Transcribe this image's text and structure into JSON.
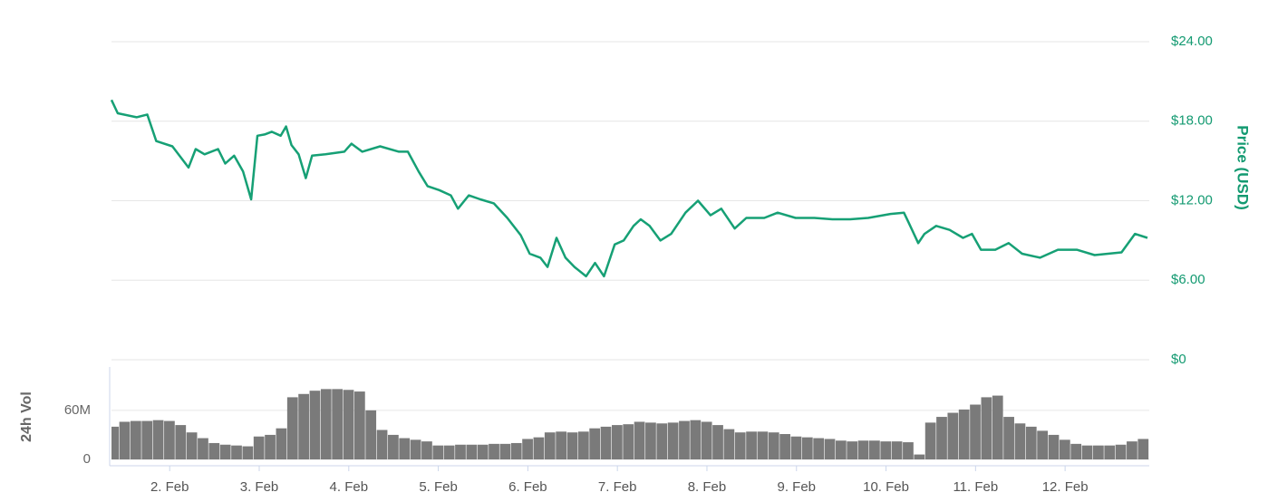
{
  "chart_data": [
    {
      "type": "line",
      "y_label": "Price (USD)",
      "color": "#16a075",
      "grid": true,
      "xlim": [
        1.35,
        12.94
      ],
      "ylim": [
        0,
        24
      ],
      "yticks": [
        {
          "value": 0,
          "label": "$0"
        },
        {
          "value": 6,
          "label": "$6.00"
        },
        {
          "value": 12,
          "label": "$12.00"
        },
        {
          "value": 18,
          "label": "$18.00"
        },
        {
          "value": 24,
          "label": "$24.00"
        }
      ],
      "x": [
        1.35,
        1.42,
        1.63,
        1.75,
        1.85,
        2.03,
        2.21,
        2.29,
        2.39,
        2.54,
        2.62,
        2.72,
        2.82,
        2.91,
        2.98,
        3.06,
        3.14,
        3.24,
        3.3,
        3.36,
        3.44,
        3.52,
        3.59,
        3.74,
        3.95,
        4.03,
        4.15,
        4.35,
        4.56,
        4.66,
        4.78,
        4.88,
        5.01,
        5.14,
        5.22,
        5.34,
        5.47,
        5.62,
        5.77,
        5.92,
        6.02,
        6.14,
        6.22,
        6.32,
        6.42,
        6.52,
        6.65,
        6.75,
        6.85,
        6.97,
        7.07,
        7.18,
        7.26,
        7.36,
        7.48,
        7.6,
        7.76,
        7.9,
        8.04,
        8.16,
        8.31,
        8.44,
        8.64,
        8.79,
        8.99,
        9.2,
        9.4,
        9.6,
        9.8,
        10.05,
        10.2,
        10.25,
        10.36,
        10.43,
        10.56,
        10.71,
        10.86,
        10.96,
        11.06,
        11.22,
        11.37,
        11.52,
        11.72,
        11.92,
        12.13,
        12.33,
        12.63,
        12.78,
        12.92
      ],
      "values": [
        19.6,
        18.6,
        18.3,
        18.5,
        16.5,
        16.1,
        14.5,
        15.9,
        15.5,
        15.9,
        14.8,
        15.4,
        14.2,
        12.1,
        16.9,
        17.0,
        17.2,
        16.9,
        17.6,
        16.2,
        15.5,
        13.7,
        15.4,
        15.5,
        15.7,
        16.3,
        15.7,
        16.1,
        15.7,
        15.7,
        14.2,
        13.1,
        12.8,
        12.4,
        11.4,
        12.4,
        12.1,
        11.8,
        10.7,
        9.4,
        8.0,
        7.7,
        7.0,
        9.2,
        7.7,
        7.0,
        6.3,
        7.3,
        6.3,
        8.7,
        9.0,
        10.1,
        10.6,
        10.1,
        9.0,
        9.5,
        11.1,
        12.0,
        10.9,
        11.4,
        9.9,
        10.7,
        10.7,
        11.1,
        10.7,
        10.7,
        10.6,
        10.6,
        10.7,
        11.0,
        11.1,
        10.4,
        8.8,
        9.5,
        10.1,
        9.8,
        9.2,
        9.5,
        8.3,
        8.3,
        8.8,
        8.0,
        7.7,
        8.3,
        8.3,
        7.9,
        8.1,
        9.5,
        9.2
      ]
    },
    {
      "type": "bar",
      "y_label": "24h Vol",
      "color": "#7a7a7a",
      "grid": true,
      "xlim": [
        1.35,
        12.94
      ],
      "ylim": [
        0,
        113
      ],
      "yticks": [
        0,
        {
          "value": 60,
          "label": "60M"
        }
      ],
      "xticks": [
        {
          "value": 2,
          "label": "2. Feb"
        },
        {
          "value": 3,
          "label": "3. Feb"
        },
        {
          "value": 4,
          "label": "4. Feb"
        },
        {
          "value": 5,
          "label": "5. Feb"
        },
        {
          "value": 6,
          "label": "6. Feb"
        },
        {
          "value": 7,
          "label": "7. Feb"
        },
        {
          "value": 8,
          "label": "8. Feb"
        },
        {
          "value": 9,
          "label": "9. Feb"
        },
        {
          "value": 10,
          "label": "10. Feb"
        },
        {
          "value": 11,
          "label": "11. Feb"
        },
        {
          "value": 12,
          "label": "12. Feb"
        }
      ],
      "bar_width": 0.125,
      "x": [
        1.375,
        1.5,
        1.625,
        1.75,
        1.875,
        2.0,
        2.125,
        2.25,
        2.375,
        2.5,
        2.625,
        2.75,
        2.875,
        3.0,
        3.125,
        3.25,
        3.375,
        3.5,
        3.625,
        3.75,
        3.875,
        4.0,
        4.125,
        4.25,
        4.375,
        4.5,
        4.625,
        4.75,
        4.875,
        5.0,
        5.125,
        5.25,
        5.375,
        5.5,
        5.625,
        5.75,
        5.875,
        6.0,
        6.125,
        6.25,
        6.375,
        6.5,
        6.625,
        6.75,
        6.875,
        7.0,
        7.125,
        7.25,
        7.375,
        7.5,
        7.625,
        7.75,
        7.875,
        8.0,
        8.125,
        8.25,
        8.375,
        8.5,
        8.625,
        8.75,
        8.875,
        9.0,
        9.125,
        9.25,
        9.375,
        9.5,
        9.625,
        9.75,
        9.875,
        10.0,
        10.125,
        10.25,
        10.375,
        10.5,
        10.625,
        10.75,
        10.875,
        11.0,
        11.125,
        11.25,
        11.375,
        11.5,
        11.625,
        11.75,
        11.875,
        12.0,
        12.125,
        12.25,
        12.375,
        12.5,
        12.625,
        12.75,
        12.875
      ],
      "values": [
        40,
        46,
        47,
        47,
        48,
        47,
        42,
        33,
        26,
        20,
        18,
        17,
        16,
        28,
        30,
        38,
        76,
        80,
        84,
        86,
        86,
        85,
        83,
        60,
        36,
        30,
        26,
        24,
        22,
        17,
        17,
        18,
        18,
        18,
        19,
        19,
        20,
        25,
        27,
        33,
        34,
        33,
        34,
        38,
        40,
        42,
        43,
        46,
        45,
        44,
        45,
        47,
        48,
        46,
        42,
        37,
        33,
        34,
        34,
        33,
        31,
        28,
        27,
        26,
        25,
        23,
        22,
        23,
        23,
        22,
        22,
        21,
        6,
        45,
        52,
        57,
        61,
        67,
        76,
        78,
        52,
        44,
        40,
        35,
        30,
        24,
        19,
        17,
        17,
        17,
        18,
        22,
        25
      ]
    }
  ]
}
